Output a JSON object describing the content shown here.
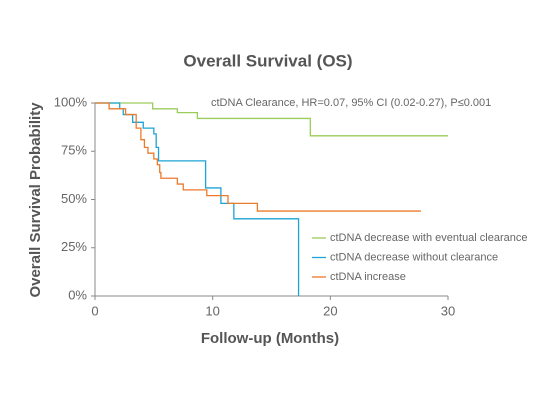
{
  "chart_data": {
    "type": "line",
    "step": true,
    "title": "Overall Survival (OS)",
    "x_label": "Follow-up (Months)",
    "y_label": "Overall Survival Probability",
    "annotation": "ctDNA Clearance, HR=0.07, 95% CI (0.02-0.27), P≤0.001",
    "xlim": [
      0,
      30
    ],
    "ylim": [
      0,
      100
    ],
    "xticks": [
      0,
      10,
      20,
      30
    ],
    "yticks": [
      {
        "value": 0,
        "label": "0%"
      },
      {
        "value": 25,
        "label": "25%"
      },
      {
        "value": 50,
        "label": "50%"
      },
      {
        "value": 75,
        "label": "75%"
      },
      {
        "value": 100,
        "label": "100%"
      }
    ],
    "legend": "lower right",
    "series": [
      {
        "name": "ctDNA decrease with eventual clearance",
        "color": "#9ccc5c",
        "x": [
          0,
          4.9,
          7,
          8.7,
          18.3,
          30
        ],
        "values": [
          100,
          97,
          95,
          92,
          83,
          83
        ]
      },
      {
        "name": "ctDNA decrease without clearance",
        "color": "#1ea3d6",
        "x": [
          0,
          2.1,
          2.4,
          3.2,
          4.1,
          5,
          5.2,
          5.4,
          9.4,
          10.7,
          11.8,
          17.3
        ],
        "values": [
          100,
          97,
          94,
          90,
          87,
          84,
          77,
          70,
          56,
          48,
          40,
          0
        ]
      },
      {
        "name": "ctDNA increase",
        "color": "#ec7a2c",
        "x": [
          0,
          1.2,
          2.6,
          3.5,
          3.9,
          4.2,
          4.5,
          5,
          5.3,
          5.5,
          5.6,
          7,
          7.5,
          9.5,
          11.3,
          13.8,
          27.7
        ],
        "values": [
          100,
          97,
          94,
          87,
          81,
          77,
          74,
          71,
          68,
          64,
          61,
          58,
          55,
          52,
          48,
          44,
          44
        ]
      }
    ]
  }
}
